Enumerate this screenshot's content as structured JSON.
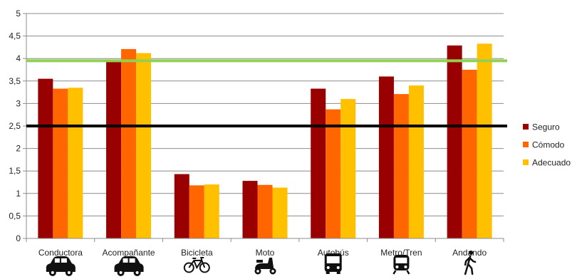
{
  "chart_data": {
    "type": "bar",
    "categories": [
      "Conductora",
      "Acompañante",
      "Bicicleta",
      "Moto",
      "Autobús",
      "Metro/Tren",
      "Andando"
    ],
    "category_icons": [
      "car-icon",
      "car-icon",
      "bicycle-icon",
      "scooter-icon",
      "bus-icon",
      "train-icon",
      "walking-person-icon"
    ],
    "series": [
      {
        "name": "Seguro",
        "color": "#990000",
        "values": [
          3.55,
          3.93,
          1.43,
          1.28,
          3.33,
          3.6,
          4.29
        ]
      },
      {
        "name": "Cómodo",
        "color": "#FF6600",
        "values": [
          3.33,
          4.21,
          1.18,
          1.19,
          2.87,
          3.21,
          3.75
        ]
      },
      {
        "name": "Adecuado",
        "color": "#FFC000",
        "values": [
          3.35,
          4.12,
          1.2,
          1.13,
          3.1,
          3.4,
          4.33
        ]
      }
    ],
    "reference_lines": [
      {
        "value": 3.95,
        "color": "#92D050"
      },
      {
        "value": 2.5,
        "color": "#000000"
      }
    ],
    "ylim": [
      0,
      5
    ],
    "yticks": [
      "0",
      "0,5",
      "1",
      "1,5",
      "2",
      "2,5",
      "3",
      "3,5",
      "4",
      "4,5",
      "5"
    ],
    "grid": true,
    "legend_position": "right",
    "title": "",
    "xlabel": "",
    "ylabel": ""
  }
}
